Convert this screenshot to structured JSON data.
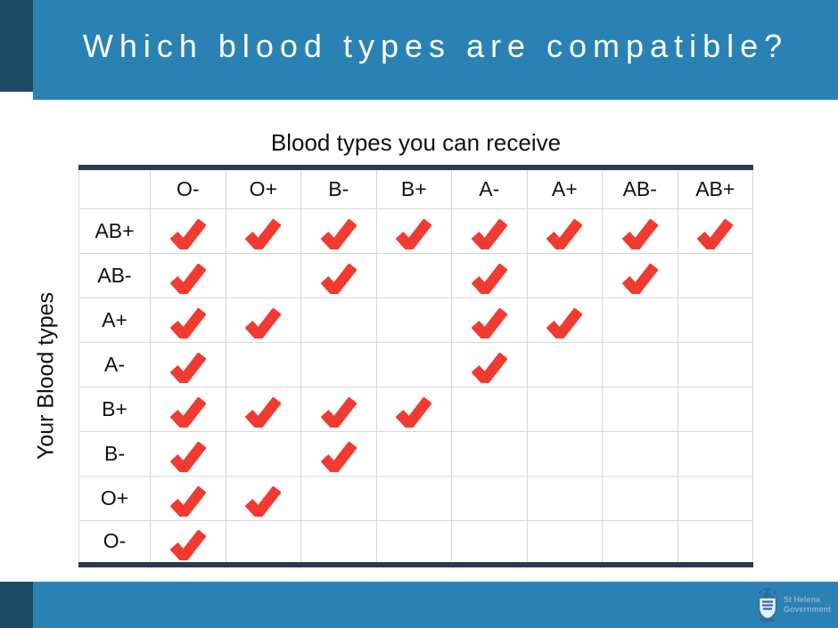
{
  "title": "Which blood types are compatible?",
  "colors": {
    "banner_blue": "#2A82B4",
    "accent_navy": "#1C4A67",
    "check_red": "#F13B31",
    "table_border_dark": "#2C3B4E",
    "grid_gray": "#D8D8D8",
    "text_black": "#111111",
    "logo_text_blue": "#86B3CB",
    "crest_blue": "#2E6E9E"
  },
  "chart_data": {
    "type": "table",
    "title": "Which blood types are compatible?",
    "top_label": "Blood types you can receive",
    "side_label": "Your Blood types",
    "columns": [
      "O-",
      "O+",
      "B-",
      "B+",
      "A-",
      "A+",
      "AB-",
      "AB+"
    ],
    "rows": [
      {
        "label": "AB+",
        "checks": [
          1,
          1,
          1,
          1,
          1,
          1,
          1,
          1
        ]
      },
      {
        "label": "AB-",
        "checks": [
          1,
          0,
          1,
          0,
          1,
          0,
          1,
          0
        ]
      },
      {
        "label": "A+",
        "checks": [
          1,
          1,
          0,
          0,
          1,
          1,
          0,
          0
        ]
      },
      {
        "label": "A-",
        "checks": [
          1,
          0,
          0,
          0,
          1,
          0,
          0,
          0
        ]
      },
      {
        "label": "B+",
        "checks": [
          1,
          1,
          1,
          1,
          0,
          0,
          0,
          0
        ]
      },
      {
        "label": "B-",
        "checks": [
          1,
          0,
          1,
          0,
          0,
          0,
          0,
          0
        ]
      },
      {
        "label": "O+",
        "checks": [
          1,
          1,
          0,
          0,
          0,
          0,
          0,
          0
        ]
      },
      {
        "label": "O-",
        "checks": [
          1,
          0,
          0,
          0,
          0,
          0,
          0,
          0
        ]
      }
    ],
    "cell_symbol": "heavy-red-checkmark",
    "legend_position": "none",
    "grid": true
  },
  "footer": {
    "logo_line1": "St Helena",
    "logo_line2": "Government"
  }
}
